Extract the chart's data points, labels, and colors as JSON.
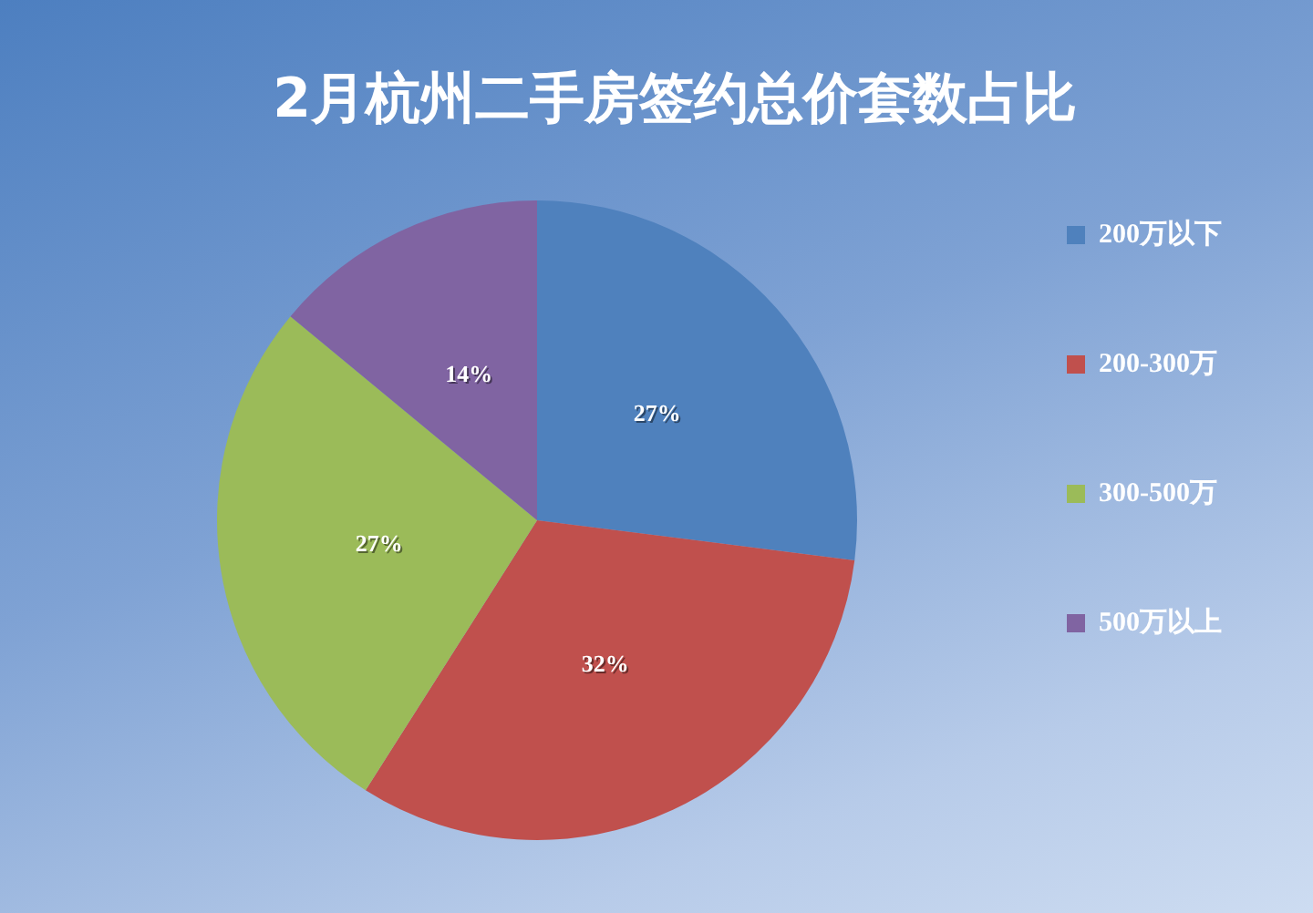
{
  "chart_data": {
    "type": "pie",
    "title": "2月杭州二手房签约总价套数占比",
    "categories": [
      "200万以下",
      "200-300万",
      "300-500万",
      "500万以上"
    ],
    "values": [
      27,
      32,
      27,
      14
    ],
    "colors": [
      "#4f81bd",
      "#c0504d",
      "#9bbb59",
      "#8064a2"
    ],
    "value_labels": [
      "27%",
      "32%",
      "27%",
      "14%"
    ],
    "legend": "right"
  }
}
